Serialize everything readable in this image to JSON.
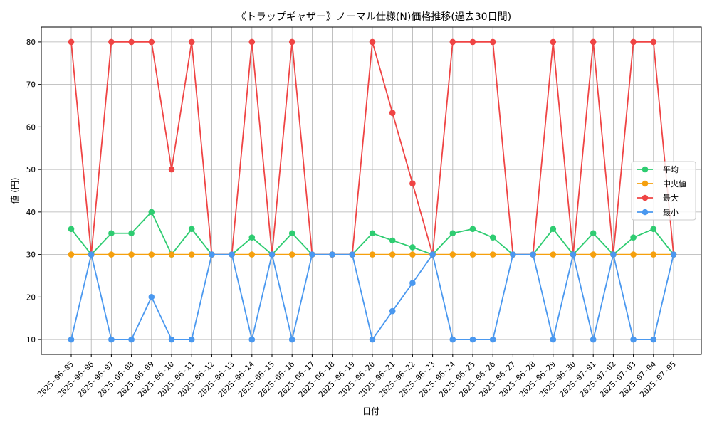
{
  "chart_data": {
    "type": "line",
    "title": "《トラップギャザー》ノーマル仕様(N)価格推移(過去30日間)",
    "xlabel": "日付",
    "ylabel": "値 (円)",
    "ylim": [
      6.5,
      83.5
    ],
    "yticks": [
      10,
      20,
      30,
      40,
      50,
      60,
      70,
      80
    ],
    "grid": true,
    "legend_position": "center-right",
    "categories": [
      "2025-06-05",
      "2025-06-06",
      "2025-06-07",
      "2025-06-08",
      "2025-06-09",
      "2025-06-10",
      "2025-06-11",
      "2025-06-12",
      "2025-06-13",
      "2025-06-14",
      "2025-06-15",
      "2025-06-16",
      "2025-06-17",
      "2025-06-18",
      "2025-06-19",
      "2025-06-20",
      "2025-06-21",
      "2025-06-22",
      "2025-06-23",
      "2025-06-24",
      "2025-06-25",
      "2025-06-26",
      "2025-06-27",
      "2025-06-28",
      "2025-06-29",
      "2025-06-30",
      "2025-07-01",
      "2025-07-02",
      "2025-07-03",
      "2025-07-04",
      "2025-07-05"
    ],
    "series": [
      {
        "name": "平均",
        "color": "#2ecc71",
        "values": [
          36,
          30,
          35,
          35,
          40,
          30,
          36,
          30,
          30,
          34,
          30,
          35,
          30,
          30,
          30,
          35,
          33.3,
          31.7,
          30,
          35,
          36,
          34,
          30,
          30,
          36,
          30,
          35,
          30,
          34,
          36,
          30
        ]
      },
      {
        "name": "中央値",
        "color": "#f5a00e",
        "values": [
          30,
          30,
          30,
          30,
          30,
          30,
          30,
          30,
          30,
          30,
          30,
          30,
          30,
          30,
          30,
          30,
          30,
          30,
          30,
          30,
          30,
          30,
          30,
          30,
          30,
          30,
          30,
          30,
          30,
          30,
          30
        ]
      },
      {
        "name": "最大",
        "color": "#ef4444",
        "values": [
          80,
          30,
          80,
          80,
          80,
          50,
          80,
          30,
          30,
          80,
          30,
          80,
          30,
          30,
          30,
          80,
          63.3,
          46.7,
          30,
          80,
          80,
          80,
          30,
          30,
          80,
          30,
          80,
          30,
          80,
          80,
          30
        ]
      },
      {
        "name": "最小",
        "color": "#4a98ef",
        "values": [
          10,
          30,
          10,
          10,
          20,
          10,
          10,
          30,
          30,
          10,
          30,
          10,
          30,
          30,
          30,
          10,
          16.7,
          23.3,
          30,
          10,
          10,
          10,
          30,
          30,
          10,
          30,
          10,
          30,
          10,
          10,
          30
        ]
      }
    ]
  }
}
